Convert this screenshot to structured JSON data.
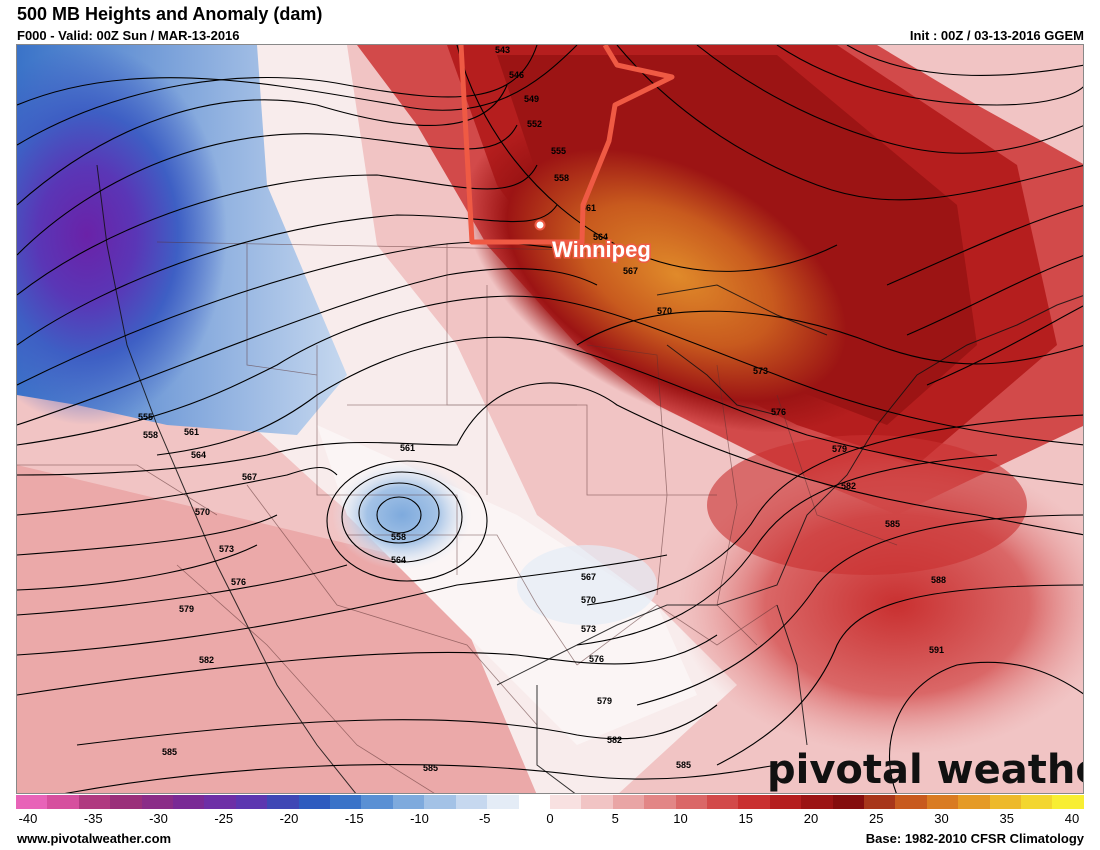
{
  "header": {
    "title": "500 MB Heights and Anomaly (dam)",
    "valid": "F000 - Valid: 00Z Sun / MAR-13-2016",
    "init": "Init : 00Z / 03-13-2016 GGEM"
  },
  "map": {
    "city": "Winnipeg",
    "watermark": "pivotal weather",
    "contour_labels": [
      "543",
      "546",
      "549",
      "552",
      "555",
      "558",
      "561",
      "564",
      "567",
      "570",
      "573",
      "576",
      "579",
      "582",
      "585",
      "588",
      "591"
    ]
  },
  "legend": {
    "ticks": [
      "-40",
      "-35",
      "-30",
      "-25",
      "-20",
      "-15",
      "-10",
      "-5",
      "0",
      "5",
      "10",
      "15",
      "20",
      "25",
      "30",
      "35",
      "40"
    ],
    "colors": [
      "#e863b8",
      "#d64f9e",
      "#b03a80",
      "#9a2f7a",
      "#8a2c87",
      "#7a2a95",
      "#6d2fa6",
      "#5c36b0",
      "#3f47b5",
      "#2e5bbf",
      "#3a73c8",
      "#5a90d4",
      "#7eaadd",
      "#a3c2e6",
      "#c6d8ef",
      "#e4ecf6",
      "#ffffff",
      "#f8e1e1",
      "#f1c4c4",
      "#e9a5a5",
      "#e28686",
      "#da6767",
      "#d24a4a",
      "#c93030",
      "#b51e1e",
      "#9c1414",
      "#840d0d",
      "#a8361a",
      "#c85a1e",
      "#d97b22",
      "#e59a26",
      "#edb92b",
      "#f3d62f",
      "#f8ee33"
    ]
  },
  "footer": {
    "left": "www.pivotalweather.com",
    "right": "Base: 1982-2010 CFSR Climatology"
  }
}
